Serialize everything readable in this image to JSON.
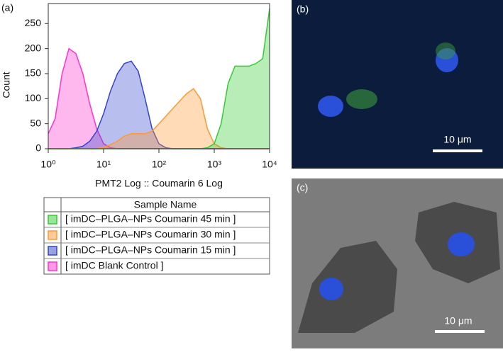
{
  "chart_data": {
    "type": "area",
    "panel_label": "(a)",
    "xlabel": "PMT2 Log :: Coumarin 6 Log",
    "ylabel": "Count",
    "log_x": true,
    "xlim": [
      1,
      10000
    ],
    "ylim": [
      0,
      290
    ],
    "xticks": [
      {
        "value": 1,
        "label": "10⁰"
      },
      {
        "value": 10,
        "label": "10¹"
      },
      {
        "value": 100,
        "label": "10²"
      },
      {
        "value": 1000,
        "label": "10³"
      },
      {
        "value": 10000,
        "label": "10⁴"
      }
    ],
    "yticks": [
      0,
      50,
      100,
      150,
      200,
      250
    ],
    "x": [
      1,
      1.33,
      1.78,
      2.37,
      3.16,
      4.22,
      5.62,
      7.5,
      10,
      13.3,
      17.8,
      23.7,
      31.6,
      42.2,
      56.2,
      75,
      100,
      133,
      178,
      237,
      316,
      422,
      562,
      750,
      1000,
      1330,
      1780,
      2370,
      3160,
      4220,
      5620,
      7500,
      10000
    ],
    "legend_header": "Sample Name",
    "series": [
      {
        "name": "[ imDC–PLGA–NPs Coumarin 45 min ]",
        "color": "#33cc33",
        "values": [
          0,
          0,
          0,
          0,
          0,
          0,
          0,
          0,
          0,
          0,
          0,
          0,
          0,
          0,
          0,
          0,
          0,
          0,
          0,
          0,
          0,
          0,
          0,
          2,
          10,
          50,
          130,
          165,
          165,
          165,
          170,
          180,
          280
        ]
      },
      {
        "name": "[ imDC–PLGA–NPs Coumarin 30 min ]",
        "color": "#ff9933",
        "values": [
          0,
          0,
          0,
          0,
          0,
          0,
          0,
          0,
          3,
          8,
          15,
          25,
          30,
          30,
          30,
          35,
          50,
          65,
          80,
          95,
          110,
          120,
          100,
          40,
          10,
          2,
          0,
          0,
          0,
          0,
          0,
          0,
          0
        ]
      },
      {
        "name": "[ imDC–PLGA–NPs Coumarin 15 min ]",
        "color": "#3344cc",
        "values": [
          0,
          0,
          0,
          0,
          2,
          5,
          15,
          35,
          70,
          115,
          150,
          170,
          175,
          155,
          100,
          40,
          10,
          2,
          0,
          0,
          0,
          0,
          0,
          0,
          0,
          0,
          0,
          0,
          0,
          0,
          0,
          0,
          0
        ]
      },
      {
        "name": "[ imDC Blank Control ]",
        "color": "#ff33cc",
        "values": [
          30,
          60,
          150,
          200,
          190,
          150,
          90,
          40,
          10,
          2,
          0,
          0,
          0,
          0,
          0,
          0,
          0,
          0,
          0,
          0,
          0,
          0,
          0,
          0,
          0,
          0,
          0,
          0,
          0,
          0,
          0,
          0,
          0
        ]
      }
    ]
  },
  "image_panels": [
    {
      "label": "(b)",
      "scale_bar": "10 μm"
    },
    {
      "label": "(c)",
      "scale_bar": "10 μm"
    }
  ]
}
